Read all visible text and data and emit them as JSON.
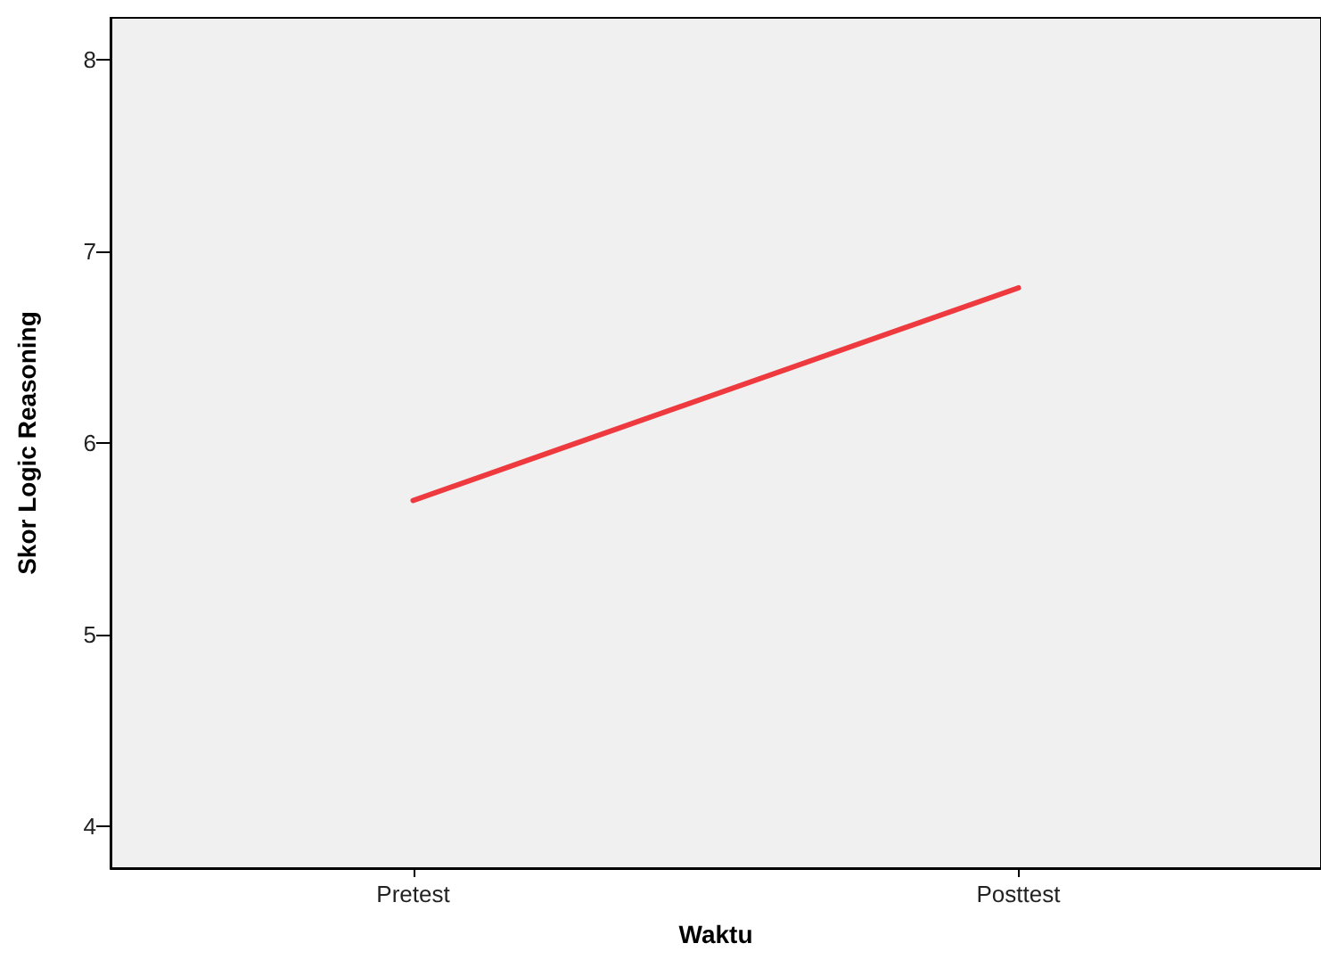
{
  "chart_data": {
    "type": "line",
    "xlabel": "Waktu",
    "ylabel": "Skor Logic Reasoning",
    "categories": [
      "Pretest",
      "Posttest"
    ],
    "series": [
      {
        "color": "#ee3a3f",
        "values": [
          5.7,
          6.81
        ]
      }
    ],
    "ylim": [
      3.78,
      8.22
    ],
    "yticks": [
      4,
      5,
      6,
      7,
      8
    ],
    "grid": false,
    "marker": "none",
    "line_style": "solid"
  }
}
